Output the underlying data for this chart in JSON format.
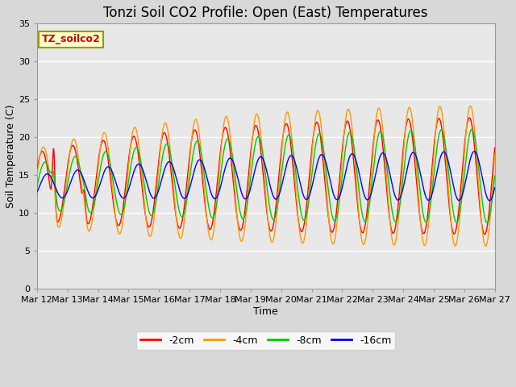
{
  "title": "Tonzi Soil CO2 Profile: Open (East) Temperatures",
  "xlabel": "Time",
  "ylabel": "Soil Temperature (C)",
  "ylim": [
    0,
    35
  ],
  "yticks": [
    0,
    5,
    10,
    15,
    20,
    25,
    30,
    35
  ],
  "date_labels": [
    "Mar 12",
    "Mar 13",
    "Mar 14",
    "Mar 15",
    "Mar 16",
    "Mar 17",
    "Mar 18",
    "Mar 19",
    "Mar 20",
    "Mar 21",
    "Mar 22",
    "Mar 23",
    "Mar 24",
    "Mar 25",
    "Mar 26",
    "Mar 27"
  ],
  "colors": {
    "-2cm": "#ff0000",
    "-4cm": "#ff9900",
    "-8cm": "#00cc00",
    "-16cm": "#0000ff"
  },
  "legend_labels": [
    "-2cm",
    "-4cm",
    "-8cm",
    "-16cm"
  ],
  "annotation_text": "TZ_soilco2",
  "annotation_box_color": "#ffffcc",
  "annotation_text_color": "#cc0000",
  "background_color": "#d8d8d8",
  "plot_bg_color": "#e8e8e8",
  "grid_color": "#ffffff",
  "title_fontsize": 12,
  "axis_label_fontsize": 9,
  "tick_fontsize": 8
}
